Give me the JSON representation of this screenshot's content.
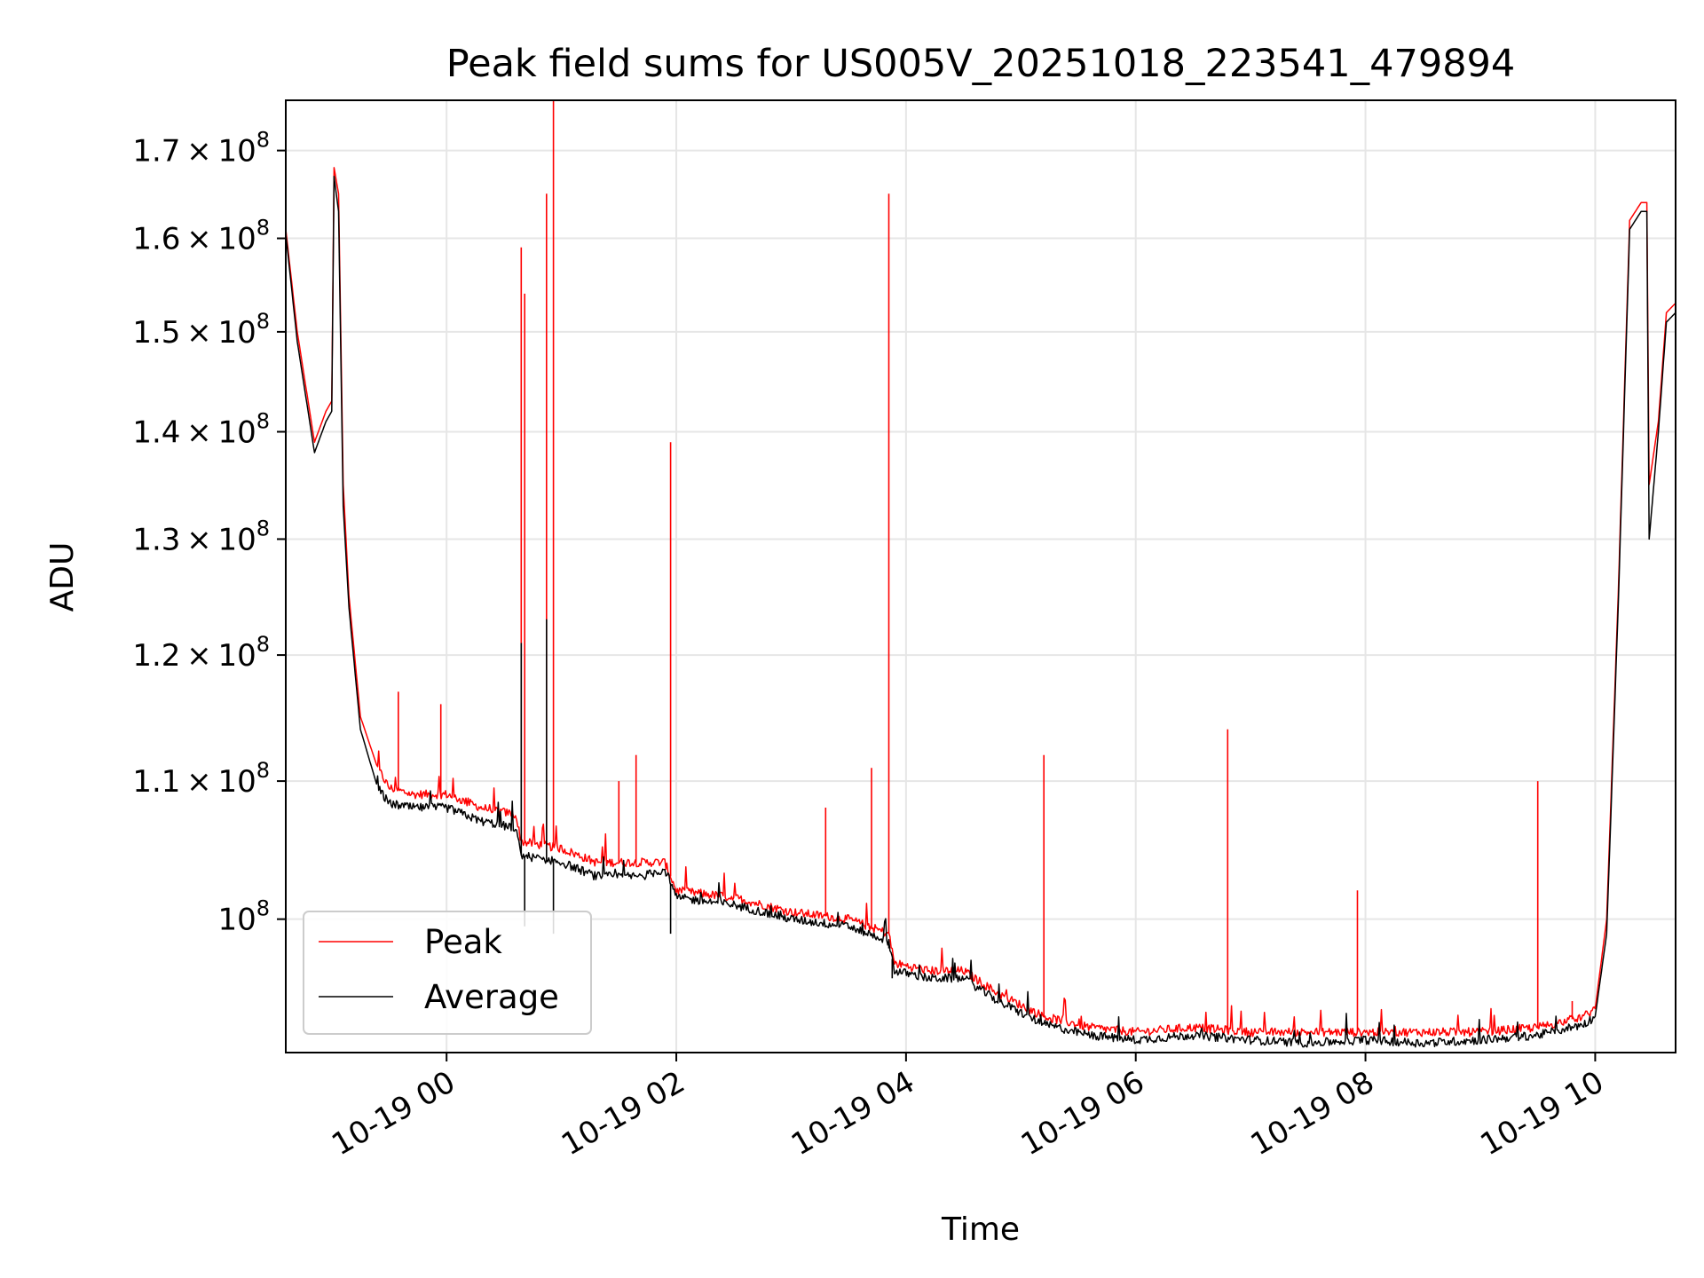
{
  "chart_data": {
    "type": "line",
    "title": "Peak field sums for US005V_20251018_223541_479894",
    "xlabel": "Time",
    "ylabel": "ADU",
    "yscale": "log",
    "ylim": [
      91200000,
      176000000
    ],
    "xlim_hours": [
      -1.4,
      10.7
    ],
    "grid": true,
    "legend_position": "lower-left",
    "y_ticks": [
      {
        "value": 100000000,
        "label": "10",
        "exp": "8",
        "mant": ""
      },
      {
        "value": 110000000,
        "label": "1.1",
        "exp": "8",
        "mant": "1.1"
      },
      {
        "value": 120000000,
        "label": "1.2",
        "exp": "8",
        "mant": "1.2"
      },
      {
        "value": 130000000,
        "label": "1.3",
        "exp": "8",
        "mant": "1.3"
      },
      {
        "value": 140000000,
        "label": "1.4",
        "exp": "8",
        "mant": "1.4"
      },
      {
        "value": 150000000,
        "label": "1.5",
        "exp": "8",
        "mant": "1.5"
      },
      {
        "value": 160000000,
        "label": "1.6",
        "exp": "8",
        "mant": "1.6"
      },
      {
        "value": 170000000,
        "label": "1.7",
        "exp": "8",
        "mant": "1.7"
      }
    ],
    "x_ticks": [
      {
        "hour": 0,
        "label": "10-19 00"
      },
      {
        "hour": 2,
        "label": "10-19 02"
      },
      {
        "hour": 4,
        "label": "10-19 04"
      },
      {
        "hour": 6,
        "label": "10-19 06"
      },
      {
        "hour": 8,
        "label": "10-19 08"
      },
      {
        "hour": 10,
        "label": "10-19 10"
      }
    ],
    "series": [
      {
        "name": "Peak",
        "color": "#ff0000",
        "points": [
          [
            -1.4,
            161000000
          ],
          [
            -1.3,
            150000000
          ],
          [
            -1.15,
            139000000
          ],
          [
            -1.05,
            142000000
          ],
          [
            -1.0,
            143000000
          ],
          [
            -0.98,
            168000000
          ],
          [
            -0.94,
            165000000
          ],
          [
            -0.9,
            135000000
          ],
          [
            -0.85,
            125000000
          ],
          [
            -0.75,
            115000000
          ],
          [
            -0.6,
            111000000
          ],
          [
            -0.5,
            109500000
          ],
          [
            -0.3,
            109000000
          ],
          [
            0.0,
            109000000
          ],
          [
            0.3,
            108000000
          ],
          [
            0.6,
            107500000
          ],
          [
            0.65,
            105500000
          ],
          [
            1.0,
            105000000
          ],
          [
            1.3,
            104000000
          ],
          [
            1.7,
            104000000
          ],
          [
            1.9,
            104000000
          ],
          [
            2.0,
            102000000
          ],
          [
            2.5,
            101500000
          ],
          [
            3.0,
            100500000
          ],
          [
            3.5,
            100000000
          ],
          [
            3.85,
            99000000
          ],
          [
            3.9,
            97000000
          ],
          [
            4.2,
            96500000
          ],
          [
            4.5,
            96500000
          ],
          [
            4.8,
            95000000
          ],
          [
            5.2,
            93500000
          ],
          [
            5.6,
            92800000
          ],
          [
            6.0,
            92500000
          ],
          [
            6.5,
            92800000
          ],
          [
            7.0,
            92500000
          ],
          [
            7.5,
            92500000
          ],
          [
            8.0,
            92500000
          ],
          [
            8.5,
            92500000
          ],
          [
            9.0,
            92500000
          ],
          [
            9.5,
            92800000
          ],
          [
            9.9,
            93500000
          ],
          [
            10.0,
            94000000
          ],
          [
            10.1,
            100000000
          ],
          [
            10.2,
            125000000
          ],
          [
            10.3,
            162000000
          ],
          [
            10.4,
            164000000
          ],
          [
            10.45,
            164000000
          ],
          [
            10.47,
            135000000
          ],
          [
            10.55,
            141000000
          ],
          [
            10.62,
            152000000
          ],
          [
            10.7,
            153000000
          ]
        ],
        "spikes": [
          {
            "x": -0.42,
            "y": 117000000
          },
          {
            "x": -0.05,
            "y": 116000000
          },
          {
            "x": 0.65,
            "y": 159000000
          },
          {
            "x": 0.68,
            "y": 154000000
          },
          {
            "x": 0.87,
            "y": 165000000
          },
          {
            "x": 0.93,
            "y": 176000000
          },
          {
            "x": 1.5,
            "y": 110000000
          },
          {
            "x": 1.65,
            "y": 112000000
          },
          {
            "x": 1.95,
            "y": 139000000
          },
          {
            "x": 3.3,
            "y": 108000000
          },
          {
            "x": 3.7,
            "y": 111000000
          },
          {
            "x": 3.85,
            "y": 165000000
          },
          {
            "x": 5.2,
            "y": 112000000
          },
          {
            "x": 6.8,
            "y": 114000000
          },
          {
            "x": 7.93,
            "y": 102000000
          },
          {
            "x": 9.5,
            "y": 110000000
          },
          {
            "x": 9.8,
            "y": 94500000
          }
        ]
      },
      {
        "name": "Average",
        "color": "#000000",
        "points": [
          [
            -1.4,
            160500000
          ],
          [
            -1.3,
            149000000
          ],
          [
            -1.15,
            138000000
          ],
          [
            -1.05,
            141000000
          ],
          [
            -1.0,
            142000000
          ],
          [
            -0.98,
            167000000
          ],
          [
            -0.94,
            163000000
          ],
          [
            -0.9,
            133000000
          ],
          [
            -0.85,
            124000000
          ],
          [
            -0.75,
            114000000
          ],
          [
            -0.6,
            109500000
          ],
          [
            -0.5,
            108300000
          ],
          [
            -0.3,
            108000000
          ],
          [
            0.0,
            108000000
          ],
          [
            0.3,
            107000000
          ],
          [
            0.6,
            106500000
          ],
          [
            0.65,
            104500000
          ],
          [
            1.0,
            104000000
          ],
          [
            1.3,
            103000000
          ],
          [
            1.7,
            103000000
          ],
          [
            1.9,
            103500000
          ],
          [
            2.0,
            101500000
          ],
          [
            2.5,
            101000000
          ],
          [
            3.0,
            100000000
          ],
          [
            3.5,
            99500000
          ],
          [
            3.85,
            98500000
          ],
          [
            3.9,
            96500000
          ],
          [
            4.2,
            96000000
          ],
          [
            4.5,
            96000000
          ],
          [
            4.8,
            94500000
          ],
          [
            5.2,
            93000000
          ],
          [
            5.6,
            92300000
          ],
          [
            6.0,
            92000000
          ],
          [
            6.5,
            92300000
          ],
          [
            7.0,
            92000000
          ],
          [
            7.5,
            91800000
          ],
          [
            8.0,
            92000000
          ],
          [
            8.5,
            91800000
          ],
          [
            9.0,
            92000000
          ],
          [
            9.5,
            92300000
          ],
          [
            9.9,
            93000000
          ],
          [
            10.0,
            93500000
          ],
          [
            10.1,
            99000000
          ],
          [
            10.2,
            124000000
          ],
          [
            10.3,
            161000000
          ],
          [
            10.4,
            163000000
          ],
          [
            10.45,
            163000000
          ],
          [
            10.47,
            130000000
          ],
          [
            10.55,
            140000000
          ],
          [
            10.62,
            151000000
          ],
          [
            10.7,
            152000000
          ]
        ],
        "spikes": [
          {
            "x": 0.65,
            "y": 121000000
          },
          {
            "x": 0.68,
            "y": 99500000
          },
          {
            "x": 0.87,
            "y": 123000000
          },
          {
            "x": 0.93,
            "y": 99000000
          },
          {
            "x": 1.95,
            "y": 99000000
          },
          {
            "x": 3.85,
            "y": 98000000
          },
          {
            "x": 3.88,
            "y": 96000000
          }
        ]
      }
    ]
  }
}
